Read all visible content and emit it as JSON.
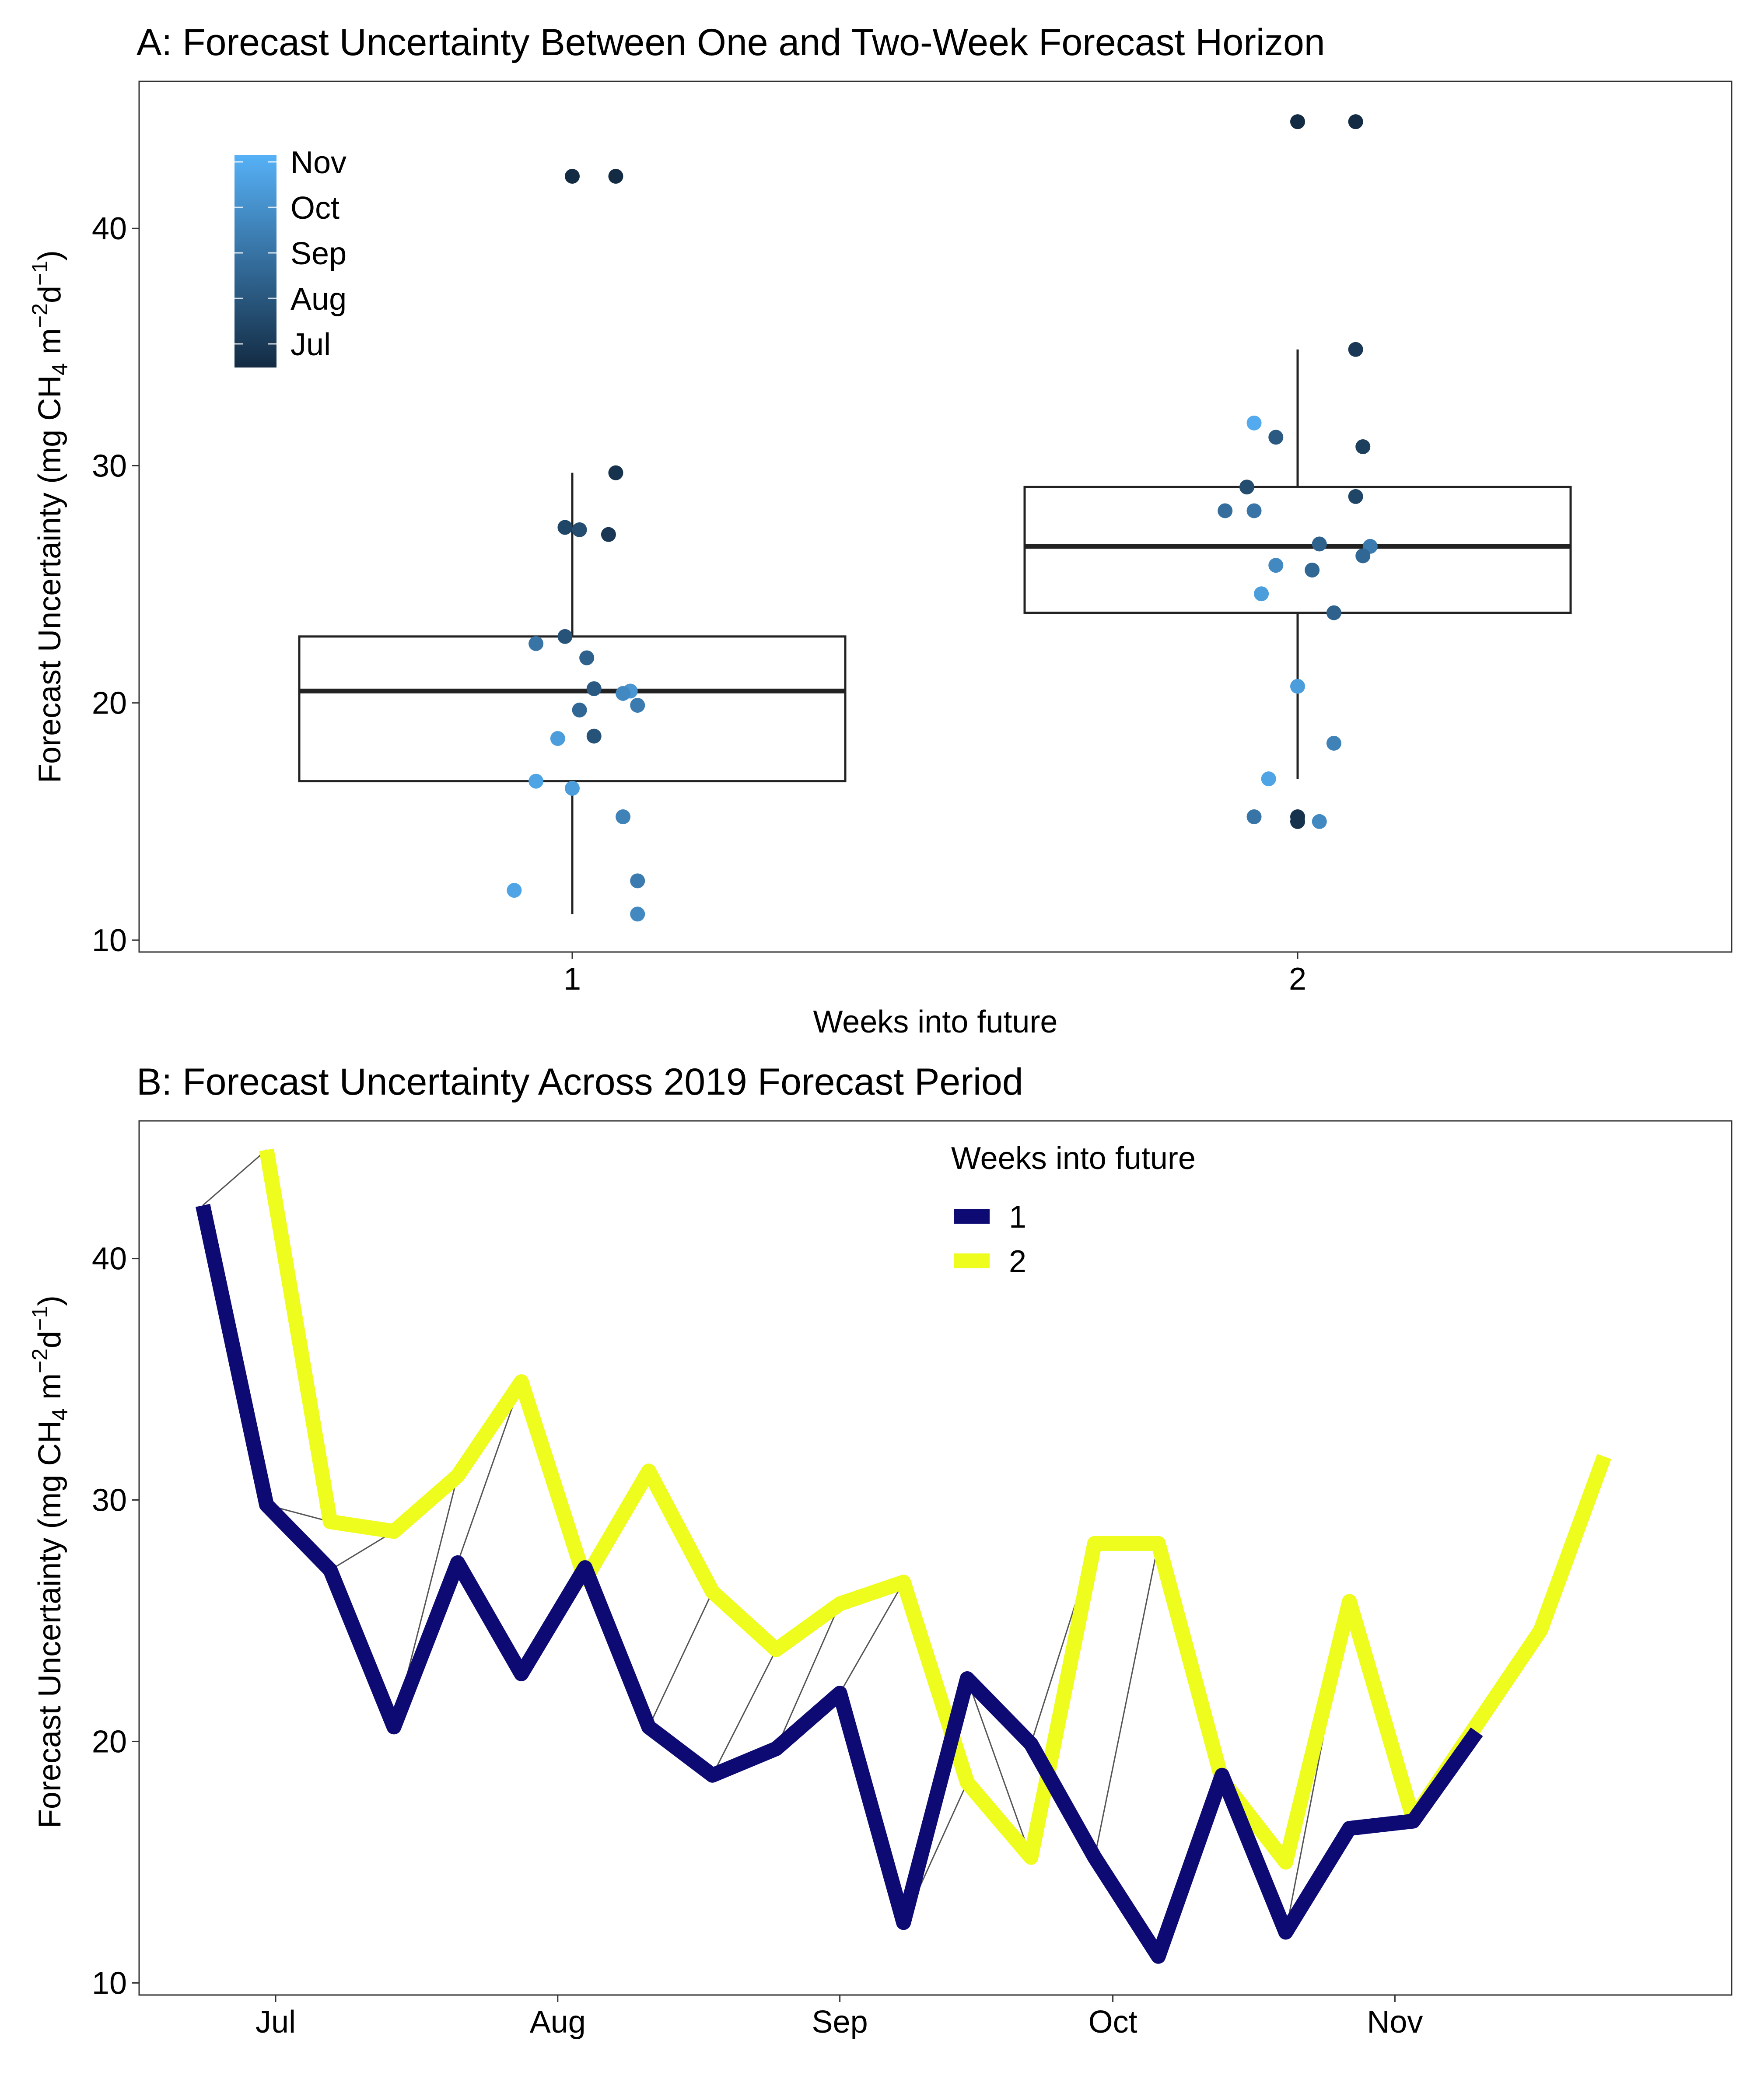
{
  "chart_data": [
    {
      "type": "box",
      "title": "A: Forecast Uncertainty Between One and Two-Week Forecast Horizon",
      "xlabel": "Weeks into future",
      "ylabel": {
        "main": "Forecast Uncertainty (mg CH",
        "sub": "4",
        "mid": " m",
        "sup1": "−2",
        "mid2": "d",
        "sup2": "−1",
        "end": ")"
      },
      "categories": [
        "1",
        "2"
      ],
      "ylim": [
        9.5,
        46.2
      ],
      "yticks": [
        10,
        20,
        30,
        40
      ],
      "boxes": [
        {
          "category": "1",
          "whisker_low": 11.1,
          "q1": 16.7,
          "median": 20.5,
          "q3": 22.8,
          "whisker_high": 29.7
        },
        {
          "category": "2",
          "whisker_low": 16.8,
          "q1": 23.8,
          "median": 26.6,
          "q3": 29.1,
          "whisker_high": 34.9
        }
      ],
      "color_legend": {
        "labels": [
          "Nov",
          "Oct",
          "Sep",
          "Aug",
          "Jul"
        ],
        "low_color": "#132B43",
        "high_color": "#56B1F7"
      },
      "points": [
        {
          "category": "1",
          "jitter": 0.0,
          "y": 42.2,
          "t": 0.0
        },
        {
          "category": "1",
          "jitter": 0.06,
          "y": 42.2,
          "t": 0.0
        },
        {
          "category": "1",
          "jitter": 0.06,
          "y": 29.7,
          "t": 0.05
        },
        {
          "category": "1",
          "jitter": -0.01,
          "y": 27.4,
          "t": 0.2
        },
        {
          "category": "1",
          "jitter": 0.01,
          "y": 27.3,
          "t": 0.25
        },
        {
          "category": "1",
          "jitter": 0.05,
          "y": 27.1,
          "t": 0.1
        },
        {
          "category": "1",
          "jitter": -0.01,
          "y": 22.8,
          "t": 0.3
        },
        {
          "category": "1",
          "jitter": -0.05,
          "y": 22.5,
          "t": 0.55
        },
        {
          "category": "1",
          "jitter": 0.02,
          "y": 21.9,
          "t": 0.4
        },
        {
          "category": "1",
          "jitter": 0.03,
          "y": 20.6,
          "t": 0.35
        },
        {
          "category": "1",
          "jitter": 0.08,
          "y": 20.5,
          "t": 0.8
        },
        {
          "category": "1",
          "jitter": 0.07,
          "y": 20.4,
          "t": 0.7
        },
        {
          "category": "1",
          "jitter": 0.09,
          "y": 19.9,
          "t": 0.6
        },
        {
          "category": "1",
          "jitter": 0.01,
          "y": 19.7,
          "t": 0.45
        },
        {
          "category": "1",
          "jitter": -0.02,
          "y": 18.5,
          "t": 0.85
        },
        {
          "category": "1",
          "jitter": 0.03,
          "y": 18.6,
          "t": 0.3
        },
        {
          "category": "1",
          "jitter": -0.05,
          "y": 16.7,
          "t": 0.9
        },
        {
          "category": "1",
          "jitter": 0.0,
          "y": 16.4,
          "t": 0.85
        },
        {
          "category": "1",
          "jitter": 0.07,
          "y": 15.2,
          "t": 0.65
        },
        {
          "category": "1",
          "jitter": 0.09,
          "y": 12.5,
          "t": 0.6
        },
        {
          "category": "1",
          "jitter": -0.08,
          "y": 12.1,
          "t": 0.9
        },
        {
          "category": "1",
          "jitter": 0.09,
          "y": 11.1,
          "t": 0.7
        },
        {
          "category": "2",
          "jitter": 0.0,
          "y": 44.5,
          "t": 0.0
        },
        {
          "category": "2",
          "jitter": 0.08,
          "y": 44.5,
          "t": 0.0
        },
        {
          "category": "2",
          "jitter": 0.08,
          "y": 34.9,
          "t": 0.1
        },
        {
          "category": "2",
          "jitter": -0.06,
          "y": 31.8,
          "t": 0.95
        },
        {
          "category": "2",
          "jitter": -0.03,
          "y": 31.2,
          "t": 0.35
        },
        {
          "category": "2",
          "jitter": 0.09,
          "y": 30.8,
          "t": 0.15
        },
        {
          "category": "2",
          "jitter": -0.07,
          "y": 29.1,
          "t": 0.25
        },
        {
          "category": "2",
          "jitter": 0.08,
          "y": 28.7,
          "t": 0.2
        },
        {
          "category": "2",
          "jitter": -0.1,
          "y": 28.1,
          "t": 0.5
        },
        {
          "category": "2",
          "jitter": -0.06,
          "y": 28.1,
          "t": 0.55
        },
        {
          "category": "2",
          "jitter": 0.03,
          "y": 26.7,
          "t": 0.4
        },
        {
          "category": "2",
          "jitter": 0.1,
          "y": 26.6,
          "t": 0.6
        },
        {
          "category": "2",
          "jitter": 0.09,
          "y": 26.2,
          "t": 0.45
        },
        {
          "category": "2",
          "jitter": -0.03,
          "y": 25.8,
          "t": 0.7
        },
        {
          "category": "2",
          "jitter": 0.02,
          "y": 25.6,
          "t": 0.45
        },
        {
          "category": "2",
          "jitter": -0.05,
          "y": 24.6,
          "t": 0.85
        },
        {
          "category": "2",
          "jitter": 0.05,
          "y": 23.8,
          "t": 0.4
        },
        {
          "category": "2",
          "jitter": 0.0,
          "y": 20.7,
          "t": 0.85
        },
        {
          "category": "2",
          "jitter": 0.05,
          "y": 18.3,
          "t": 0.65
        },
        {
          "category": "2",
          "jitter": -0.04,
          "y": 16.8,
          "t": 0.9
        },
        {
          "category": "2",
          "jitter": -0.06,
          "y": 15.2,
          "t": 0.55
        },
        {
          "category": "2",
          "jitter": 0.0,
          "y": 15.2,
          "t": 0.05
        },
        {
          "category": "2",
          "jitter": 0.0,
          "y": 15.0,
          "t": 0.05
        },
        {
          "category": "2",
          "jitter": 0.03,
          "y": 15.0,
          "t": 0.7
        }
      ]
    },
    {
      "type": "line",
      "title": "B: Forecast Uncertainty Across 2019 Forecast Period",
      "ylabel": {
        "main": "Forecast Uncertainty (mg CH",
        "sub": "4",
        "mid": " m",
        "sup1": "−2",
        "mid2": "d",
        "sup2": "−1",
        "end": ")"
      },
      "x_type": "date",
      "xlim": [
        "2019-06-16",
        "2019-12-08"
      ],
      "ylim": [
        9.5,
        45.7
      ],
      "yticks": [
        10,
        20,
        30,
        40
      ],
      "xticks": [
        {
          "date": "2019-07-01",
          "label": "Jul"
        },
        {
          "date": "2019-08-01",
          "label": "Aug"
        },
        {
          "date": "2019-09-01",
          "label": "Sep"
        },
        {
          "date": "2019-10-01",
          "label": "Oct"
        },
        {
          "date": "2019-11-01",
          "label": "Nov"
        }
      ],
      "legend": {
        "title": "Weeks into future",
        "position": "top-center"
      },
      "series": [
        {
          "name": "1",
          "color": "#0D0A73",
          "points": [
            [
              "2019-06-23",
              42.2
            ],
            [
              "2019-06-30",
              29.8
            ],
            [
              "2019-07-07",
              27.1
            ],
            [
              "2019-07-14",
              20.6
            ],
            [
              "2019-07-21",
              27.4
            ],
            [
              "2019-07-28",
              22.8
            ],
            [
              "2019-08-04",
              27.2
            ],
            [
              "2019-08-11",
              20.6
            ],
            [
              "2019-08-18",
              18.6
            ],
            [
              "2019-08-25",
              19.7
            ],
            [
              "2019-09-01",
              22.0
            ],
            [
              "2019-09-08",
              12.5
            ],
            [
              "2019-09-15",
              22.6
            ],
            [
              "2019-09-22",
              19.9
            ],
            [
              "2019-09-29",
              15.2
            ],
            [
              "2019-10-06",
              11.1
            ],
            [
              "2019-10-13",
              18.6
            ],
            [
              "2019-10-20",
              12.1
            ],
            [
              "2019-10-27",
              16.4
            ],
            [
              "2019-11-03",
              16.7
            ],
            [
              "2019-11-10",
              20.4
            ]
          ]
        },
        {
          "name": "2",
          "color": "#EEFC1E",
          "points": [
            [
              "2019-06-30",
              44.5
            ],
            [
              "2019-07-07",
              29.1
            ],
            [
              "2019-07-14",
              28.7
            ],
            [
              "2019-07-21",
              31.0
            ],
            [
              "2019-07-28",
              34.9
            ],
            [
              "2019-08-04",
              26.7
            ],
            [
              "2019-08-11",
              31.2
            ],
            [
              "2019-08-18",
              26.2
            ],
            [
              "2019-08-25",
              23.8
            ],
            [
              "2019-09-01",
              25.7
            ],
            [
              "2019-09-08",
              26.6
            ],
            [
              "2019-09-15",
              18.3
            ],
            [
              "2019-09-22",
              15.2
            ],
            [
              "2019-09-29",
              28.2
            ],
            [
              "2019-10-06",
              28.2
            ],
            [
              "2019-10-13",
              18.4
            ],
            [
              "2019-10-20",
              15.0
            ],
            [
              "2019-10-27",
              25.8
            ],
            [
              "2019-11-03",
              16.8
            ],
            [
              "2019-11-10",
              20.7
            ],
            [
              "2019-11-17",
              24.6
            ],
            [
              "2019-11-24",
              31.8
            ]
          ]
        }
      ],
      "connectors": {
        "color": "#555555",
        "note_pairs": "each week-1 forecast linked to the week-2 forecast issued one week earlier for the same week"
      }
    }
  ]
}
